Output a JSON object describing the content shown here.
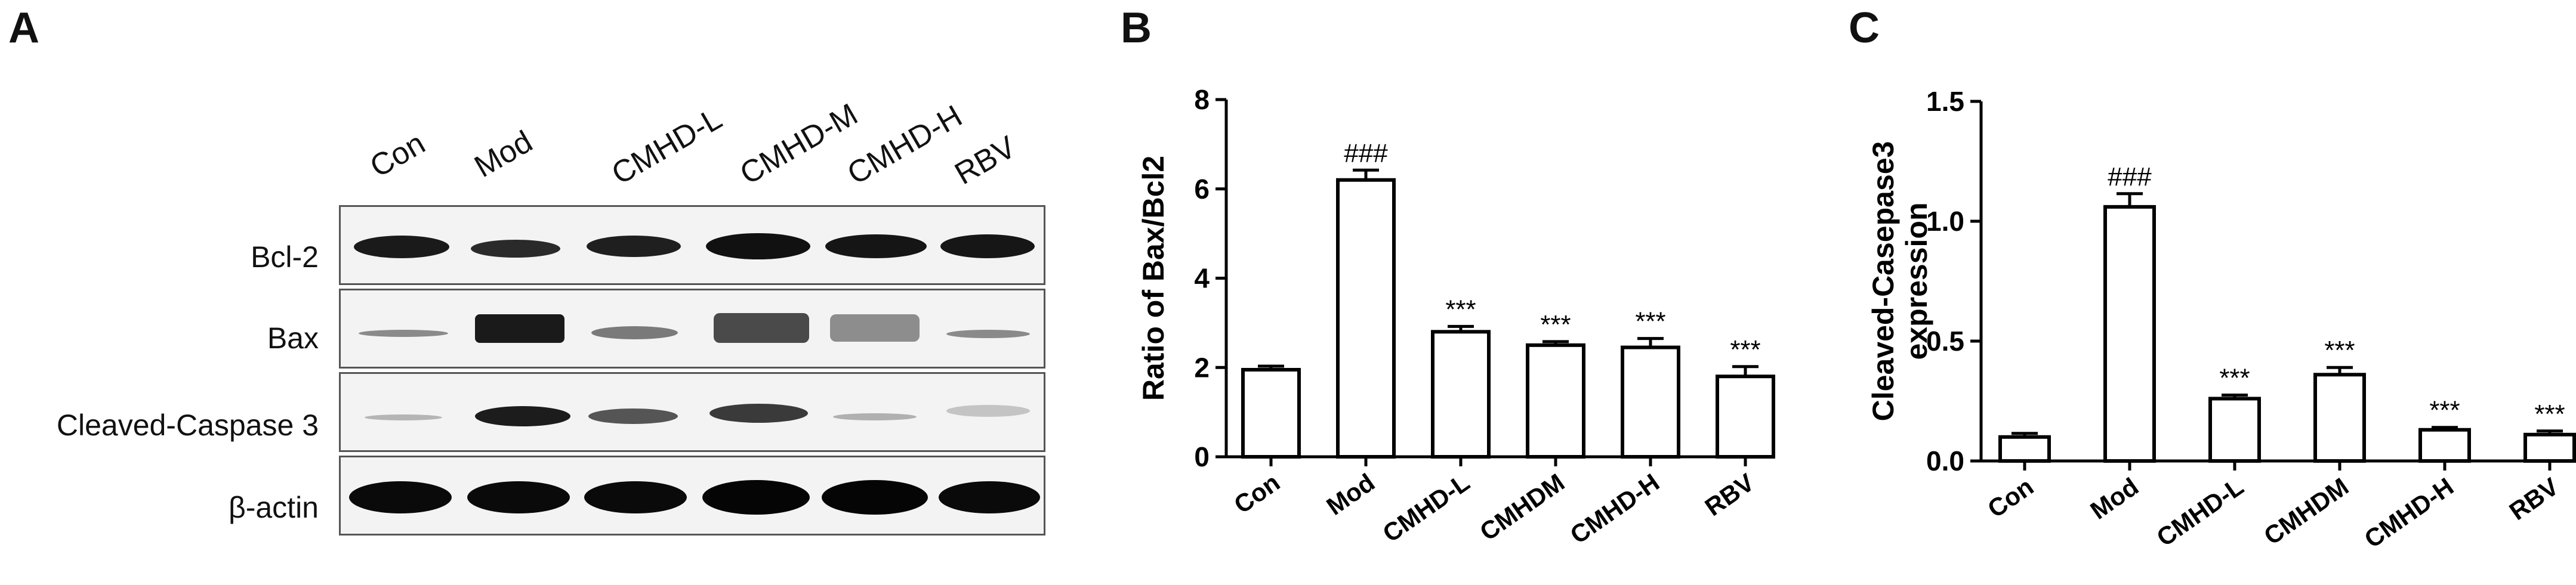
{
  "panels": {
    "a": "A",
    "b": "B",
    "c": "C"
  },
  "western_blot": {
    "lanes": [
      "Con",
      "Mod",
      "CMHD-L",
      "CMHD-M",
      "CMHD-H",
      "RBV"
    ],
    "rows": [
      "Bcl-2",
      "Bax",
      "Cleaved-Caspase 3",
      "β-actin"
    ]
  },
  "chart_data": [
    {
      "type": "bar",
      "ylabel": "Ratio of Bax/Bcl2",
      "categories": [
        "Con",
        "Mod",
        "CMHD-L",
        "CMHDM",
        "CMHD-H",
        "RBV"
      ],
      "values": [
        1.95,
        6.2,
        2.8,
        2.5,
        2.45,
        1.8
      ],
      "errors": [
        0.08,
        0.22,
        0.12,
        0.08,
        0.2,
        0.22
      ],
      "annotations": [
        "",
        "###",
        "***",
        "***",
        "***",
        "***"
      ],
      "ylim": [
        0,
        8
      ],
      "yticks": [
        "0",
        "2",
        "4",
        "6",
        "8"
      ]
    },
    {
      "type": "bar",
      "ylabel": "Cleaved-Casepase3 expression",
      "ylabel_lines": [
        "Cleaved-Casepase3",
        "expression"
      ],
      "categories": [
        "Con",
        "Mod",
        "CMHD-L",
        "CMHDM",
        "CMHD-H",
        "RBV"
      ],
      "values": [
        0.1,
        1.06,
        0.26,
        0.36,
        0.13,
        0.11
      ],
      "errors": [
        0.015,
        0.055,
        0.015,
        0.03,
        0.01,
        0.015
      ],
      "annotations": [
        "",
        "###",
        "***",
        "***",
        "***",
        "***"
      ],
      "ylim": [
        0,
        1.5
      ],
      "yticks": [
        "0.0",
        "0.5",
        "1.0",
        "1.5"
      ]
    }
  ]
}
